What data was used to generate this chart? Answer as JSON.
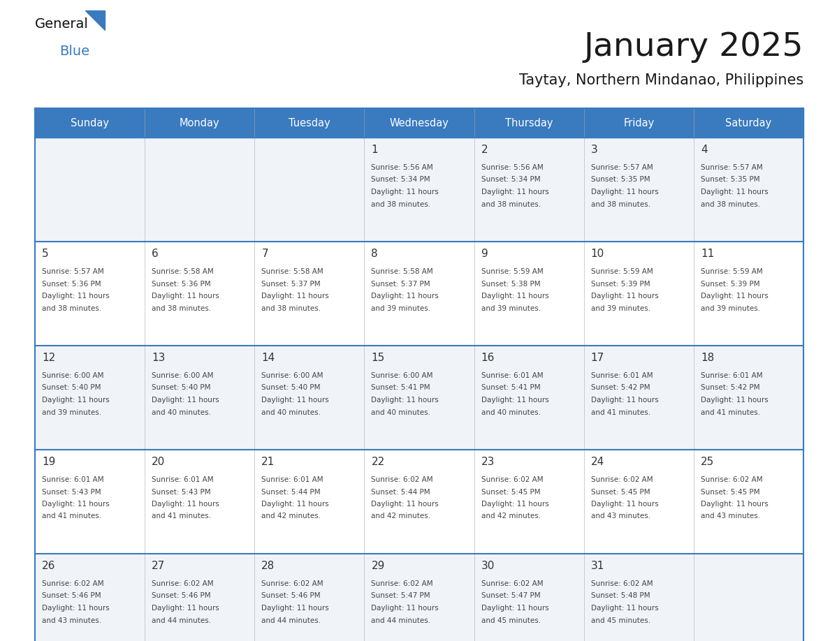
{
  "title": "January 2025",
  "subtitle": "Taytay, Northern Mindanao, Philippines",
  "header_bg_color": "#3a7abf",
  "header_text_color": "#ffffff",
  "row_bg_color": "#f0f4f8",
  "row_bg_white": "#ffffff",
  "day_number_color": "#333333",
  "cell_text_color": "#444444",
  "separator_color": "#3a7abf",
  "days_of_week": [
    "Sunday",
    "Monday",
    "Tuesday",
    "Wednesday",
    "Thursday",
    "Friday",
    "Saturday"
  ],
  "weeks": [
    {
      "days": [
        {
          "date": "",
          "sunrise": "",
          "sunset": "",
          "daylight_hours": "",
          "daylight_minutes": ""
        },
        {
          "date": "",
          "sunrise": "",
          "sunset": "",
          "daylight_hours": "",
          "daylight_minutes": ""
        },
        {
          "date": "",
          "sunrise": "",
          "sunset": "",
          "daylight_hours": "",
          "daylight_minutes": ""
        },
        {
          "date": "1",
          "sunrise": "5:56 AM",
          "sunset": "5:34 PM",
          "daylight_hours": "11",
          "daylight_minutes": "38"
        },
        {
          "date": "2",
          "sunrise": "5:56 AM",
          "sunset": "5:34 PM",
          "daylight_hours": "11",
          "daylight_minutes": "38"
        },
        {
          "date": "3",
          "sunrise": "5:57 AM",
          "sunset": "5:35 PM",
          "daylight_hours": "11",
          "daylight_minutes": "38"
        },
        {
          "date": "4",
          "sunrise": "5:57 AM",
          "sunset": "5:35 PM",
          "daylight_hours": "11",
          "daylight_minutes": "38"
        }
      ]
    },
    {
      "days": [
        {
          "date": "5",
          "sunrise": "5:57 AM",
          "sunset": "5:36 PM",
          "daylight_hours": "11",
          "daylight_minutes": "38"
        },
        {
          "date": "6",
          "sunrise": "5:58 AM",
          "sunset": "5:36 PM",
          "daylight_hours": "11",
          "daylight_minutes": "38"
        },
        {
          "date": "7",
          "sunrise": "5:58 AM",
          "sunset": "5:37 PM",
          "daylight_hours": "11",
          "daylight_minutes": "38"
        },
        {
          "date": "8",
          "sunrise": "5:58 AM",
          "sunset": "5:37 PM",
          "daylight_hours": "11",
          "daylight_minutes": "39"
        },
        {
          "date": "9",
          "sunrise": "5:59 AM",
          "sunset": "5:38 PM",
          "daylight_hours": "11",
          "daylight_minutes": "39"
        },
        {
          "date": "10",
          "sunrise": "5:59 AM",
          "sunset": "5:39 PM",
          "daylight_hours": "11",
          "daylight_minutes": "39"
        },
        {
          "date": "11",
          "sunrise": "5:59 AM",
          "sunset": "5:39 PM",
          "daylight_hours": "11",
          "daylight_minutes": "39"
        }
      ]
    },
    {
      "days": [
        {
          "date": "12",
          "sunrise": "6:00 AM",
          "sunset": "5:40 PM",
          "daylight_hours": "11",
          "daylight_minutes": "39"
        },
        {
          "date": "13",
          "sunrise": "6:00 AM",
          "sunset": "5:40 PM",
          "daylight_hours": "11",
          "daylight_minutes": "40"
        },
        {
          "date": "14",
          "sunrise": "6:00 AM",
          "sunset": "5:40 PM",
          "daylight_hours": "11",
          "daylight_minutes": "40"
        },
        {
          "date": "15",
          "sunrise": "6:00 AM",
          "sunset": "5:41 PM",
          "daylight_hours": "11",
          "daylight_minutes": "40"
        },
        {
          "date": "16",
          "sunrise": "6:01 AM",
          "sunset": "5:41 PM",
          "daylight_hours": "11",
          "daylight_minutes": "40"
        },
        {
          "date": "17",
          "sunrise": "6:01 AM",
          "sunset": "5:42 PM",
          "daylight_hours": "11",
          "daylight_minutes": "41"
        },
        {
          "date": "18",
          "sunrise": "6:01 AM",
          "sunset": "5:42 PM",
          "daylight_hours": "11",
          "daylight_minutes": "41"
        }
      ]
    },
    {
      "days": [
        {
          "date": "19",
          "sunrise": "6:01 AM",
          "sunset": "5:43 PM",
          "daylight_hours": "11",
          "daylight_minutes": "41"
        },
        {
          "date": "20",
          "sunrise": "6:01 AM",
          "sunset": "5:43 PM",
          "daylight_hours": "11",
          "daylight_minutes": "41"
        },
        {
          "date": "21",
          "sunrise": "6:01 AM",
          "sunset": "5:44 PM",
          "daylight_hours": "11",
          "daylight_minutes": "42"
        },
        {
          "date": "22",
          "sunrise": "6:02 AM",
          "sunset": "5:44 PM",
          "daylight_hours": "11",
          "daylight_minutes": "42"
        },
        {
          "date": "23",
          "sunrise": "6:02 AM",
          "sunset": "5:45 PM",
          "daylight_hours": "11",
          "daylight_minutes": "42"
        },
        {
          "date": "24",
          "sunrise": "6:02 AM",
          "sunset": "5:45 PM",
          "daylight_hours": "11",
          "daylight_minutes": "43"
        },
        {
          "date": "25",
          "sunrise": "6:02 AM",
          "sunset": "5:45 PM",
          "daylight_hours": "11",
          "daylight_minutes": "43"
        }
      ]
    },
    {
      "days": [
        {
          "date": "26",
          "sunrise": "6:02 AM",
          "sunset": "5:46 PM",
          "daylight_hours": "11",
          "daylight_minutes": "43"
        },
        {
          "date": "27",
          "sunrise": "6:02 AM",
          "sunset": "5:46 PM",
          "daylight_hours": "11",
          "daylight_minutes": "44"
        },
        {
          "date": "28",
          "sunrise": "6:02 AM",
          "sunset": "5:46 PM",
          "daylight_hours": "11",
          "daylight_minutes": "44"
        },
        {
          "date": "29",
          "sunrise": "6:02 AM",
          "sunset": "5:47 PM",
          "daylight_hours": "11",
          "daylight_minutes": "44"
        },
        {
          "date": "30",
          "sunrise": "6:02 AM",
          "sunset": "5:47 PM",
          "daylight_hours": "11",
          "daylight_minutes": "45"
        },
        {
          "date": "31",
          "sunrise": "6:02 AM",
          "sunset": "5:48 PM",
          "daylight_hours": "11",
          "daylight_minutes": "45"
        },
        {
          "date": "",
          "sunrise": "",
          "sunset": "",
          "daylight_hours": "",
          "daylight_minutes": ""
        }
      ]
    }
  ]
}
